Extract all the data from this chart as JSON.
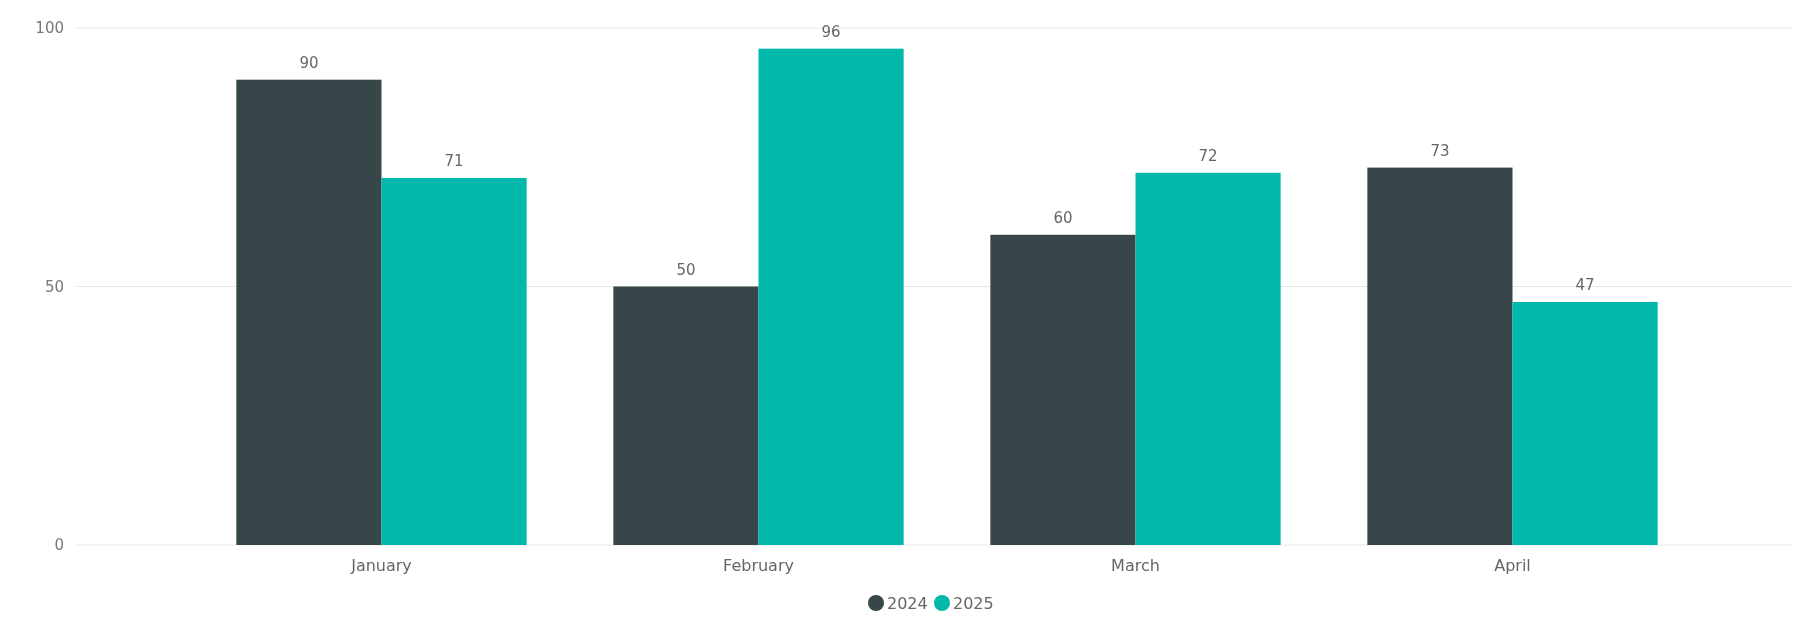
{
  "chart_data": {
    "type": "bar",
    "categories": [
      "January",
      "February",
      "March",
      "April"
    ],
    "series": [
      {
        "name": "2024",
        "color": "#374649",
        "values": [
          90,
          50,
          60,
          73
        ]
      },
      {
        "name": "2025",
        "color": "#01b8aa",
        "values": [
          71,
          96,
          72,
          47
        ]
      }
    ],
    "ylim": [
      0,
      100
    ],
    "yticks": [
      0,
      50,
      100
    ],
    "grid": "y",
    "data_labels": true,
    "legend": "bottom"
  }
}
